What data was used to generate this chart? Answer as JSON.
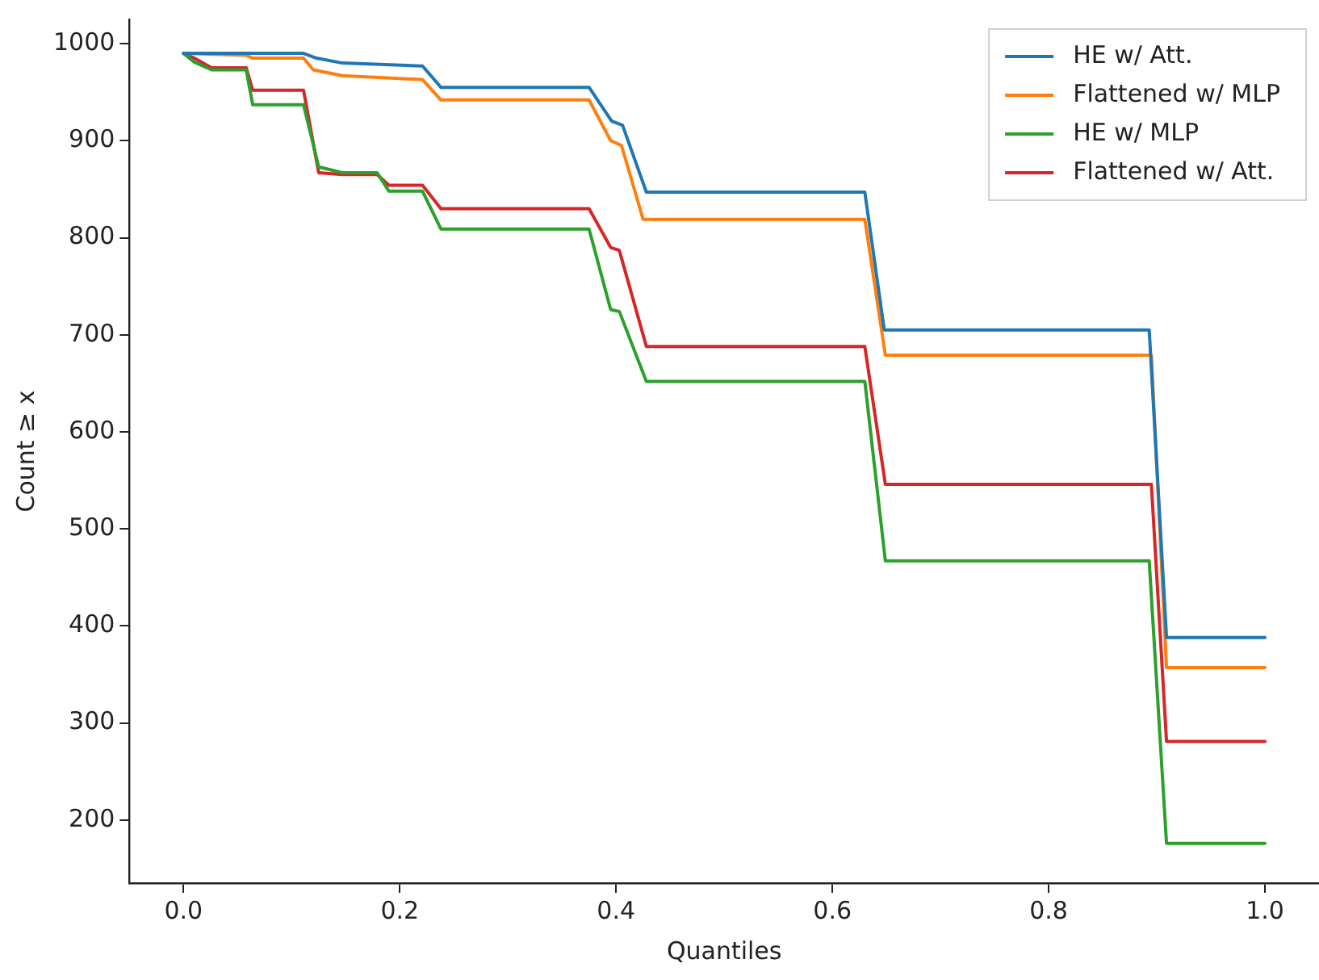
{
  "chart_data": {
    "type": "line",
    "xlabel": "Quantiles",
    "ylabel": "Count ≥ x",
    "xlim": [
      -0.05,
      1.05
    ],
    "ylim": [
      135,
      1025
    ],
    "xticks": [
      {
        "value": 0,
        "label": "0.0"
      },
      {
        "value": 0.2,
        "label": "0.2"
      },
      {
        "value": 0.4,
        "label": "0.4"
      },
      {
        "value": 0.6,
        "label": "0.6"
      },
      {
        "value": 0.8,
        "label": "0.8"
      },
      {
        "value": 1,
        "label": "1.0"
      }
    ],
    "yticks": [
      200,
      300,
      400,
      500,
      600,
      700,
      800,
      900,
      1000
    ],
    "grid": false,
    "legend": "top right",
    "marker": "none",
    "line_style": "solid",
    "series": [
      {
        "name": "HE w/ Att.",
        "color": "#1f77b4",
        "x": [
          0,
          0.111,
          0.123,
          0.147,
          0.221,
          0.238,
          0.375,
          0.396,
          0.406,
          0.428,
          0.63,
          0.648,
          0.893,
          0.909,
          1.0
        ],
        "values": [
          990,
          990,
          985,
          980,
          977,
          955,
          955,
          920,
          916,
          847,
          847,
          705,
          705,
          388,
          388
        ]
      },
      {
        "name": "Flattened w/ MLP",
        "color": "#ff7f0e",
        "x": [
          0,
          0.058,
          0.064,
          0.111,
          0.12,
          0.147,
          0.221,
          0.238,
          0.375,
          0.395,
          0.405,
          0.425,
          0.63,
          0.649,
          0.895,
          0.909,
          1.0
        ],
        "values": [
          990,
          988,
          985,
          985,
          973,
          967,
          963,
          942,
          942,
          900,
          895,
          819,
          819,
          679,
          679,
          357,
          357
        ]
      },
      {
        "name": "HE w/ MLP",
        "color": "#2ca02c",
        "x": [
          0,
          0.01,
          0.026,
          0.058,
          0.064,
          0.111,
          0.125,
          0.147,
          0.179,
          0.19,
          0.221,
          0.238,
          0.375,
          0.395,
          0.403,
          0.428,
          0.63,
          0.649,
          0.893,
          0.909,
          1.0
        ],
        "values": [
          990,
          981,
          973,
          973,
          937,
          937,
          873,
          867,
          867,
          848,
          848,
          809,
          809,
          726,
          724,
          652,
          652,
          467,
          467,
          176,
          176
        ]
      },
      {
        "name": "Flattened w/ Att.",
        "color": "#d62728",
        "x": [
          0,
          0.01,
          0.026,
          0.058,
          0.064,
          0.111,
          0.125,
          0.147,
          0.179,
          0.19,
          0.221,
          0.238,
          0.375,
          0.395,
          0.403,
          0.428,
          0.63,
          0.649,
          0.895,
          0.909,
          1.0
        ],
        "values": [
          990,
          985,
          975,
          975,
          952,
          952,
          867,
          865,
          865,
          854,
          854,
          830,
          830,
          790,
          787,
          688,
          688,
          546,
          546,
          281,
          281
        ]
      }
    ]
  }
}
